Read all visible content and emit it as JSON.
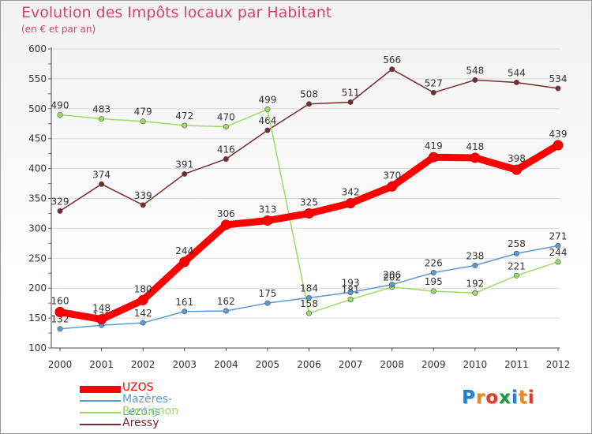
{
  "title": "Evolution des Impôts locaux par Habitant",
  "subtitle": "(en € et par an)",
  "logo": "Proxiti",
  "chart_data": {
    "type": "line",
    "x": [
      "2000",
      "2001",
      "2002",
      "2003",
      "2004",
      "2005",
      "2006",
      "2007",
      "2008",
      "2009",
      "2010",
      "2011",
      "2012"
    ],
    "ylim": [
      100,
      600
    ],
    "yticks": [
      100,
      150,
      200,
      250,
      300,
      350,
      400,
      450,
      500,
      550,
      600
    ],
    "grid": true,
    "legend": "bottom-left",
    "series": [
      {
        "name": "UZOS",
        "color": "#ff0000",
        "values": [
          160,
          148,
          180,
          244,
          306,
          313,
          325,
          342,
          370,
          419,
          418,
          398,
          439
        ]
      },
      {
        "name": "Mazères-Lezons",
        "color": "#5b9bd5",
        "values": [
          132,
          138,
          142,
          161,
          162,
          175,
          184,
          193,
          206,
          226,
          238,
          258,
          271
        ]
      },
      {
        "name": "Rontignon",
        "color": "#99dd66",
        "values": [
          490,
          483,
          479,
          472,
          470,
          499,
          158,
          181,
          202,
          195,
          192,
          221,
          244
        ]
      },
      {
        "name": "Aressy",
        "color": "#7a2a2a",
        "values": [
          329,
          374,
          339,
          391,
          416,
          464,
          508,
          511,
          566,
          527,
          548,
          544,
          534
        ]
      }
    ]
  }
}
